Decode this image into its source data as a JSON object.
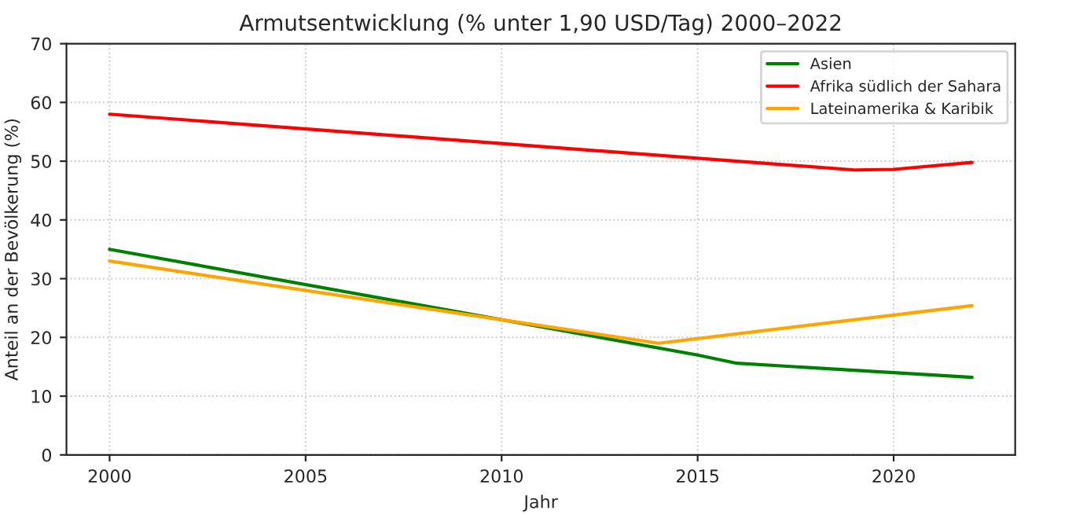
{
  "chart_data": {
    "type": "line",
    "title": "Armutsentwicklung (% unter 1,90 USD/Tag) 2000–2022",
    "xlabel": "Jahr",
    "ylabel": "Anteil an der Bevölkerung (%)",
    "series": [
      {
        "name": "Asien",
        "color": "#008000",
        "x": [
          2000,
          2015,
          2016,
          2020,
          2022
        ],
        "values": [
          35,
          17,
          15.6,
          14,
          13.2
        ]
      },
      {
        "name": "Afrika südlich der Sahara",
        "color": "#ff0000",
        "x": [
          2000,
          2010,
          2019,
          2020,
          2022
        ],
        "values": [
          58,
          53,
          48.5,
          48.6,
          49.8
        ]
      },
      {
        "name": "Lateinamerika & Karibik",
        "color": "#ffa500",
        "x": [
          2000,
          2010,
          2014,
          2022
        ],
        "values": [
          33,
          23,
          19,
          25.4
        ]
      }
    ],
    "xlim": [
      1998.9,
      2023.1
    ],
    "xticks": [
      2000,
      2005,
      2010,
      2015,
      2020
    ],
    "ylim": [
      0,
      70
    ],
    "yticks": [
      0,
      10,
      20,
      30,
      40,
      50,
      60,
      70
    ],
    "grid": true,
    "legend": "top right",
    "line_style": "solid"
  }
}
